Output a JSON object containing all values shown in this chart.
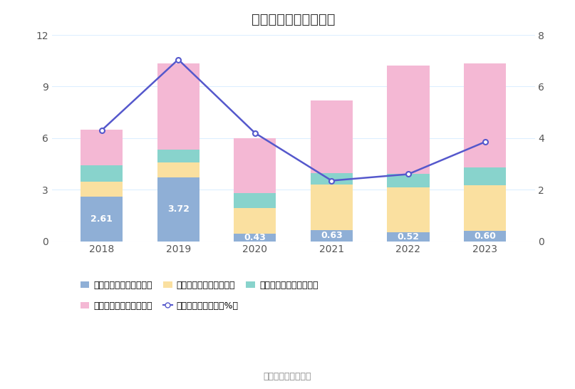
{
  "title": "历年期间费用变化情况",
  "years": [
    2018,
    2019,
    2020,
    2021,
    2022,
    2023
  ],
  "sales": [
    2.61,
    3.72,
    0.43,
    0.63,
    0.52,
    0.6
  ],
  "management": [
    0.85,
    0.85,
    1.5,
    2.65,
    2.6,
    2.65
  ],
  "financial": [
    0.95,
    0.78,
    0.88,
    0.7,
    0.8,
    1.05
  ],
  "rd": [
    2.09,
    5.0,
    3.2,
    4.2,
    6.3,
    6.05
  ],
  "rate": [
    4.3,
    7.05,
    4.2,
    2.35,
    2.6,
    3.85
  ],
  "left_ylim": [
    0,
    12
  ],
  "right_ylim": [
    0,
    8
  ],
  "left_yticks": [
    0,
    3,
    6,
    9,
    12
  ],
  "right_yticks": [
    0,
    2,
    4,
    6,
    8
  ],
  "color_sales": "#8FAFD6",
  "color_management": "#FAE0A0",
  "color_financial": "#88D3CC",
  "color_rd": "#F4B8D4",
  "color_line": "#5558CC",
  "background_color": "#FFFFFF",
  "grid_color": "#DDEEFF",
  "bar_width": 0.55,
  "legend_labels": [
    "左轴：销售费用（亿元）",
    "左轴：管理费用（亿元）",
    "左轴：财务费用（亿元）",
    "左轴：研发费用（亿元）",
    "右轴：期间费用率（%）"
  ],
  "source_text": "数据来源：恒生聚源"
}
